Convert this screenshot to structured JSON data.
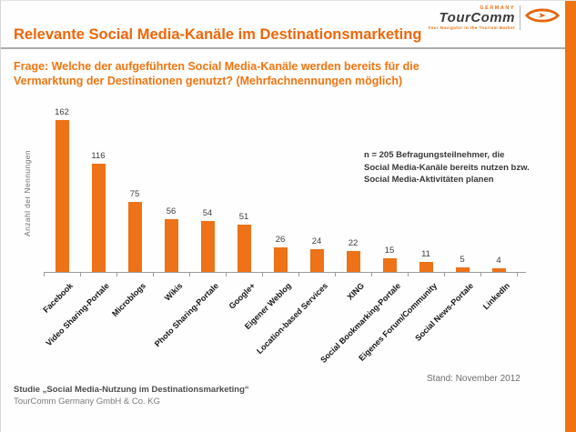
{
  "page": {
    "title": "Relevante Social Media-Kanäle im Destinationsmarketing",
    "question_line1": "Frage: Welche der aufgeführten Social Media-Kanäle werden bereits für die",
    "question_line2": "Vermarktung der Destinationen genutzt? (Mehrfachnennungen möglich)"
  },
  "logo": {
    "country": "GERMANY",
    "wordmark": "TourComm",
    "tagline": "Your Navigator in the Tourism Market",
    "icon": "tourcomm-eye-icon"
  },
  "annotation": {
    "line1": "n = 205 Befragungsteilnehmer, die",
    "line2": "Social Media-Kanäle bereits nutzen bzw.",
    "line3": "Social Media-Aktivitäten planen"
  },
  "footer": {
    "study_line1": "Studie „Social Media-Nutzung im Destinationsmarketing“",
    "study_line2": "TourComm Germany GmbH & Co. KG",
    "date_note": "Stand: November 2012"
  },
  "colors": {
    "bar_orange": "#ED7218",
    "title_orange": "#EE660A",
    "accent_strip_orange": "#F1730F",
    "axis_gray": "#9C9C9C",
    "text_gray": "#6E6E6E"
  },
  "chart_data": {
    "type": "bar",
    "categories": [
      "Facebook",
      "Video Sharing-Portale",
      "Microblogs",
      "Wikis",
      "Photo Sharing-Portale",
      "Google+",
      "Eigener Weblog",
      "Location-based Services",
      "XING",
      "Social Bookmarking-Portale",
      "Eigenes Forum/Community",
      "Social News-Portale",
      "LinkedIn"
    ],
    "values": [
      162,
      116,
      75,
      56,
      54,
      51,
      26,
      24,
      22,
      15,
      11,
      5,
      4
    ],
    "title": "",
    "xlabel": "",
    "ylabel": "Anzahl der Nennungen",
    "ylim": [
      0,
      170
    ],
    "grid": false,
    "legend": false,
    "value_labels": true,
    "bar_color": "#ED7218"
  }
}
